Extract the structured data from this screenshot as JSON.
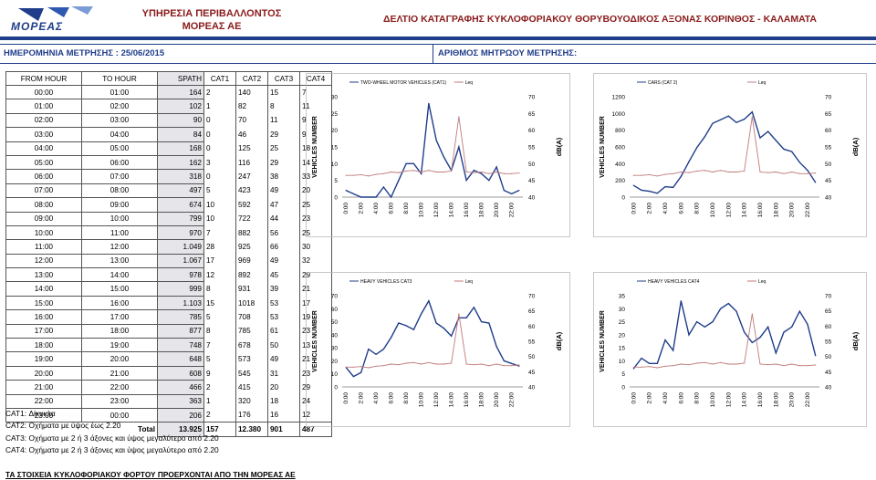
{
  "header": {
    "logo_text": "ΜΟΡΕΑΣ",
    "org_line1": "ΥΠΗΡΕΣΙΑ ΠΕΡΙΒΑΛΛΟΝΤΟΣ",
    "org_line2": "ΜΟΡΕΑΣ ΑΕ",
    "title": "ΔΕΛΤΙΟ ΚΑΤΑΓΡΑΦΗΣ ΚΥΚΛΟΦΟΡΙΑΚΟΥ ΘΟΡΥΒΟΥΟΔΙΚΟΣ ΑΞΟΝΑΣ ΚΟΡΙΝΘΟΣ - ΚΑΛΑΜΑΤΑ",
    "date_label": "ΗΜΕΡΟΜΗΝΙΑ ΜΕΤΡΗΣΗΣ : 25/06/2015",
    "meter_label": "ΑΡΙΘΜΟΣ ΜΗΤΡΩΟΥ ΜΕΤΡΗΣΗΣ:"
  },
  "colors": {
    "cat_line": "#1f3d8a",
    "leq_line": "#c07a7a",
    "accent": "#8a1b1b"
  },
  "table": {
    "headers": [
      "FROM HOUR",
      "TO HOUR",
      "SPATH",
      "CAT1",
      "CAT2",
      "CAT3",
      "CAT4"
    ],
    "rows": [
      [
        "00:00",
        "01:00",
        "164",
        "2",
        "140",
        "15",
        "7"
      ],
      [
        "01:00",
        "02:00",
        "102",
        "1",
        "82",
        "8",
        "11"
      ],
      [
        "02:00",
        "03:00",
        "90",
        "0",
        "70",
        "11",
        "9"
      ],
      [
        "03:00",
        "04:00",
        "84",
        "0",
        "46",
        "29",
        "9"
      ],
      [
        "04:00",
        "05:00",
        "168",
        "0",
        "125",
        "25",
        "18"
      ],
      [
        "05:00",
        "06:00",
        "162",
        "3",
        "116",
        "29",
        "14"
      ],
      [
        "06:00",
        "07:00",
        "318",
        "0",
        "247",
        "38",
        "33"
      ],
      [
        "07:00",
        "08:00",
        "497",
        "5",
        "423",
        "49",
        "20"
      ],
      [
        "08:00",
        "09:00",
        "674",
        "10",
        "592",
        "47",
        "25"
      ],
      [
        "09:00",
        "10:00",
        "799",
        "10",
        "722",
        "44",
        "23"
      ],
      [
        "10:00",
        "11:00",
        "970",
        "7",
        "882",
        "56",
        "25"
      ],
      [
        "11:00",
        "12:00",
        "1.049",
        "28",
        "925",
        "66",
        "30"
      ],
      [
        "12:00",
        "13:00",
        "1.067",
        "17",
        "969",
        "49",
        "32"
      ],
      [
        "13:00",
        "14:00",
        "978",
        "12",
        "892",
        "45",
        "29"
      ],
      [
        "14:00",
        "15:00",
        "999",
        "8",
        "931",
        "39",
        "21"
      ],
      [
        "15:00",
        "16:00",
        "1.103",
        "15",
        "1018",
        "53",
        "17"
      ],
      [
        "16:00",
        "17:00",
        "785",
        "5",
        "708",
        "53",
        "19"
      ],
      [
        "17:00",
        "18:00",
        "877",
        "8",
        "785",
        "61",
        "23"
      ],
      [
        "18:00",
        "19:00",
        "748",
        "7",
        "678",
        "50",
        "13"
      ],
      [
        "19:00",
        "20:00",
        "648",
        "5",
        "573",
        "49",
        "21"
      ],
      [
        "20:00",
        "21:00",
        "608",
        "9",
        "545",
        "31",
        "23"
      ],
      [
        "21:00",
        "22:00",
        "466",
        "2",
        "415",
        "20",
        "29"
      ],
      [
        "22:00",
        "23:00",
        "363",
        "1",
        "320",
        "18",
        "24"
      ],
      [
        "23:00",
        "00:00",
        "206",
        "2",
        "176",
        "16",
        "12"
      ]
    ],
    "total_label": "Total",
    "totals": [
      "13.925",
      "157",
      "12.380",
      "901",
      "487"
    ]
  },
  "legend": [
    "CAT1: Δίκυκλα",
    "CAT2: Οχήματα με ύψος έως 2.20",
    "CAT3: Οχήματα με 2 ή 3 άξονες και ύψος μεγαλύτερο από 2.20",
    "CAT4: Οχήματα με 2 ή 3 άξονες και ύψος μεγαλύτερο από 2.20"
  ],
  "footer": "ΤΑ ΣΤΟΙΧΕΙΑ ΚΥΚΛΟΦΟΡΙΑΚΟΥ ΦΟΡΤΟΥ ΠΡΟΕΡΧΟΝΤΑΙ ΑΠΟ ΤΗΝ ΜΟΡΕΑΣ ΑΕ",
  "chart_data": [
    {
      "type": "line",
      "title": "TWO-WHEEL MOTOR VEHICLES (CAT1)",
      "ylabel": "VEHICLES NUMBER",
      "y2label": "dB(A)",
      "ylim": [
        0,
        30
      ],
      "yticks": [
        0,
        5,
        10,
        15,
        20,
        25,
        30
      ],
      "y2lim": [
        40,
        70
      ],
      "y2ticks": [
        40,
        45,
        50,
        55,
        60,
        65,
        70
      ],
      "x_ticks": [
        "0:00",
        "2:00",
        "4:00",
        "6:00",
        "8:00",
        "10:00",
        "12:00",
        "14:00",
        "16:00",
        "18:00",
        "20:00",
        "22:00"
      ],
      "series": [
        {
          "name": "TWO-WHEEL MOTOR VEHICLES (CAT1)",
          "axis": "left",
          "values": [
            2,
            1,
            0,
            0,
            0,
            3,
            0,
            5,
            10,
            10,
            7,
            28,
            17,
            12,
            8,
            15,
            5,
            8,
            7,
            5,
            9,
            2,
            1,
            2
          ]
        },
        {
          "name": "Leq",
          "axis": "right",
          "values": [
            46.5,
            46.5,
            46.7,
            46.3,
            46.8,
            47,
            47.5,
            47.3,
            47.8,
            48,
            47.5,
            48,
            47.5,
            47.5,
            47.8,
            64,
            47.5,
            47.3,
            47.5,
            47,
            47.5,
            47,
            47,
            47.2
          ]
        }
      ]
    },
    {
      "type": "line",
      "title": "CARS (CAT 2)",
      "ylabel": "VEHICLES NUMBER",
      "y2label": "dB(A)",
      "ylim": [
        0,
        1200
      ],
      "yticks": [
        0,
        200,
        400,
        600,
        800,
        1000,
        1200
      ],
      "y2lim": [
        40,
        70
      ],
      "y2ticks": [
        40,
        45,
        50,
        55,
        60,
        65,
        70
      ],
      "x_ticks": [
        "0:00",
        "2:00",
        "4:00",
        "6:00",
        "8:00",
        "10:00",
        "12:00",
        "14:00",
        "16:00",
        "18:00",
        "20:00",
        "22:00"
      ],
      "series": [
        {
          "name": "CARS (CAT 2)",
          "axis": "left",
          "values": [
            140,
            82,
            70,
            46,
            125,
            116,
            247,
            423,
            592,
            722,
            882,
            925,
            969,
            892,
            931,
            1018,
            708,
            785,
            678,
            573,
            545,
            415,
            320,
            176
          ]
        },
        {
          "name": "Leq",
          "axis": "right",
          "values": [
            46.5,
            46.5,
            46.7,
            46.3,
            46.8,
            47,
            47.5,
            47.3,
            47.8,
            48,
            47.5,
            48,
            47.5,
            47.5,
            47.8,
            64,
            47.5,
            47.3,
            47.5,
            47,
            47.5,
            47,
            47,
            47.2
          ]
        }
      ]
    },
    {
      "type": "line",
      "title": "HEAVY VEHICLES CAT3",
      "ylabel": "VEHICLES NUMBER",
      "y2label": "dB(A)",
      "ylim": [
        0,
        70
      ],
      "yticks": [
        0,
        10,
        20,
        30,
        40,
        50,
        60,
        70
      ],
      "y2lim": [
        40,
        70
      ],
      "y2ticks": [
        40,
        45,
        50,
        55,
        60,
        65,
        70
      ],
      "x_ticks": [
        "0:00",
        "2:00",
        "4:00",
        "6:00",
        "8:00",
        "10:00",
        "12:00",
        "14:00",
        "16:00",
        "18:00",
        "20:00",
        "22:00"
      ],
      "series": [
        {
          "name": "HEAVY VEHICLES CAT3",
          "axis": "left",
          "values": [
            15,
            8,
            11,
            29,
            25,
            29,
            38,
            49,
            47,
            44,
            56,
            66,
            49,
            45,
            39,
            53,
            53,
            61,
            50,
            49,
            31,
            20,
            18,
            16
          ]
        },
        {
          "name": "Leq",
          "axis": "right",
          "values": [
            46.5,
            46.5,
            46.7,
            46.3,
            46.8,
            47,
            47.5,
            47.3,
            47.8,
            48,
            47.5,
            48,
            47.5,
            47.5,
            47.8,
            64,
            47.5,
            47.3,
            47.5,
            47,
            47.5,
            47,
            47,
            47.2
          ]
        }
      ]
    },
    {
      "type": "line",
      "title": "HEAVY VEHICLES CAT4",
      "ylabel": "VEHICLES NUMBER",
      "y2label": "dB(A)",
      "ylim": [
        0,
        35
      ],
      "yticks": [
        0,
        5,
        10,
        15,
        20,
        25,
        30,
        35
      ],
      "y2lim": [
        40,
        70
      ],
      "y2ticks": [
        40,
        45,
        50,
        55,
        60,
        65,
        70
      ],
      "x_ticks": [
        "0:00",
        "2:00",
        "4:00",
        "6:00",
        "8:00",
        "10:00",
        "12:00",
        "14:00",
        "16:00",
        "18:00",
        "20:00",
        "22:00"
      ],
      "series": [
        {
          "name": "HEAVY VEHICLES CAT4",
          "axis": "left",
          "values": [
            7,
            11,
            9,
            9,
            18,
            14,
            33,
            20,
            25,
            23,
            25,
            30,
            32,
            29,
            21,
            17,
            19,
            23,
            13,
            21,
            23,
            29,
            24,
            12
          ]
        },
        {
          "name": "Leq",
          "axis": "right",
          "values": [
            46.5,
            46.5,
            46.7,
            46.3,
            46.8,
            47,
            47.5,
            47.3,
            47.8,
            48,
            47.5,
            48,
            47.5,
            47.5,
            47.8,
            64,
            47.5,
            47.3,
            47.5,
            47,
            47.5,
            47,
            47,
            47.2
          ]
        }
      ]
    }
  ]
}
